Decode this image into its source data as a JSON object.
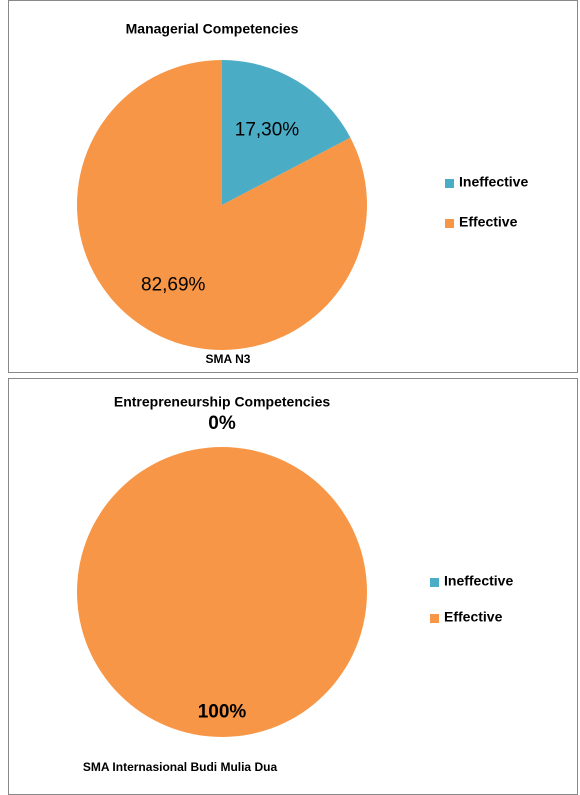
{
  "chart_data": [
    {
      "type": "pie",
      "title": "Managerial Competencies",
      "xlabel": "SMA N3",
      "categories": [
        "Ineffective",
        "Effective"
      ],
      "values": [
        17.3,
        82.69
      ],
      "value_labels": [
        "17,30%",
        "82,69%"
      ],
      "colors": [
        "#4bacc6",
        "#f79646"
      ]
    },
    {
      "type": "pie",
      "title": "Entrepreneurship Competencies",
      "xlabel": "SMA  Internasional Budi Mulia Dua",
      "categories": [
        "Ineffective",
        "Effective"
      ],
      "values": [
        0,
        100
      ],
      "value_labels": [
        "0%",
        "100%"
      ],
      "colors": [
        "#4bacc6",
        "#f79646"
      ]
    }
  ]
}
